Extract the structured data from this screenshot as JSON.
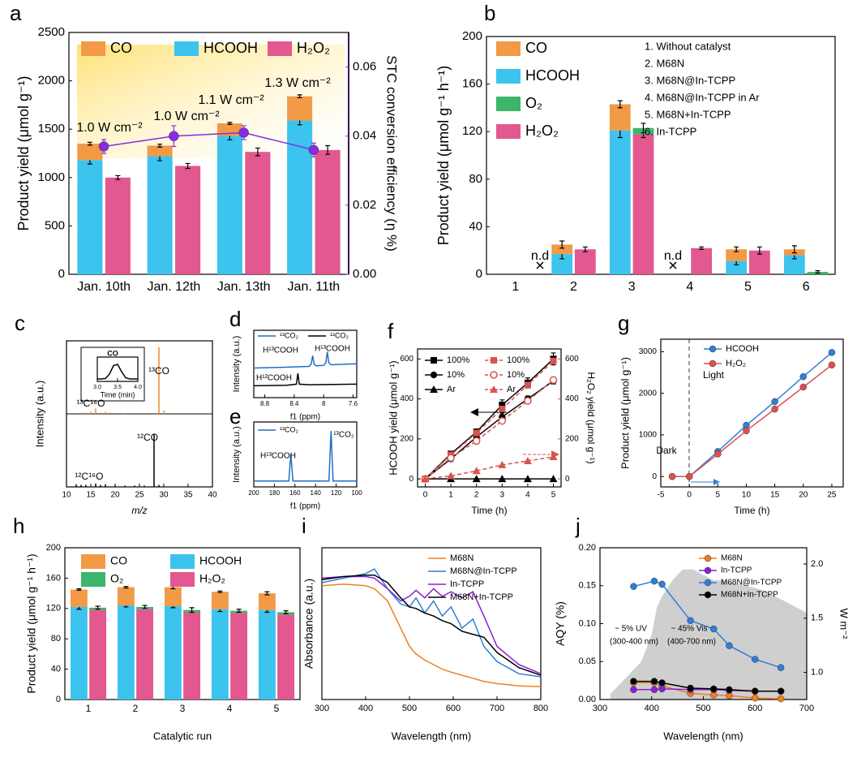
{
  "chart_data": [
    {
      "label": "a",
      "type": "bar",
      "categories": [
        "Jan. 10th",
        "Jan. 12th",
        "Jan. 13th",
        "Jan. 11th"
      ],
      "series": [
        {
          "name": "CO",
          "color": "#f29a46",
          "values": [
            170,
            110,
            130,
            250
          ],
          "errors": [
            15,
            15,
            10,
            15
          ]
        },
        {
          "name": "HCOOH",
          "color": "#3cc4ef",
          "values": [
            1180,
            1220,
            1430,
            1590
          ],
          "errors": [
            40,
            45,
            40,
            45
          ]
        },
        {
          "name": "H₂O₂",
          "color": "#e2588f",
          "values": [
            1000,
            1120,
            1265,
            1285
          ],
          "errors": [
            20,
            25,
            40,
            45
          ]
        },
        {
          "kind": "line",
          "axis": "y2",
          "color": "#8a2be2",
          "values": [
            0.037,
            0.04,
            0.041,
            0.036
          ],
          "errors": [
            0.002,
            0.003,
            0.002,
            0.002
          ]
        }
      ],
      "ylim": [
        0,
        2500
      ],
      "yticks": [
        0,
        500,
        1000,
        1500,
        2000,
        2500
      ],
      "y2lim": [
        0,
        0.07
      ],
      "y2ticks": [
        {
          "value": 0,
          "label": "0.00"
        },
        {
          "value": 0.02,
          "label": "0.02"
        },
        {
          "value": 0.04,
          "label": "0.04"
        },
        {
          "value": 0.06,
          "label": "0.06"
        }
      ],
      "ylabel": "Product yield (μmol g⁻¹)",
      "y2label": "STC conversion efficiency (η %)",
      "annotations": [
        "1.0 W cm⁻²",
        "1.0 W cm⁻²",
        "1.1 W cm⁻²",
        "1.3 W cm⁻²"
      ]
    },
    {
      "label": "b",
      "type": "bar",
      "categories": [
        "1",
        "2",
        "3",
        "4",
        "5",
        "6"
      ],
      "series": [
        {
          "name": "CO",
          "color": "#f29a46",
          "values": [
            null,
            8,
            22,
            null,
            10,
            5
          ],
          "errors": [
            null,
            3,
            3,
            null,
            2,
            3
          ]
        },
        {
          "name": "HCOOH",
          "color": "#3cc4ef",
          "values": [
            null,
            17,
            121,
            null,
            11,
            16
          ],
          "errors": [
            null,
            4,
            6,
            null,
            3,
            3
          ]
        },
        {
          "name": "O₂",
          "color": "#3db56b",
          "values": [
            null,
            null,
            5,
            null,
            null,
            2
          ],
          "errors": [
            null,
            null,
            4,
            null,
            null,
            1
          ]
        },
        {
          "name": "H₂O₂",
          "color": "#e2588f",
          "values": [
            null,
            21,
            118,
            22,
            20,
            null
          ],
          "errors": [
            null,
            2,
            3,
            1,
            3,
            null
          ]
        }
      ],
      "ylim": [
        0,
        200
      ],
      "yticks": [
        0,
        40,
        80,
        120,
        160,
        200
      ],
      "ylabel": "Product yield (μmol g⁻¹ h⁻¹)",
      "notes": [
        "1. Without catalyst",
        "2. M68N",
        "3. M68N@In-TCPP",
        "4. M68N@In-TCPP in Ar",
        "5. M68N+In-TCPP",
        "6. In-TCPP"
      ],
      "annotations": [
        "n.d",
        "n.d"
      ]
    },
    {
      "label": "c",
      "type": "stick",
      "xlim": [
        10,
        40
      ],
      "xticks": [
        10,
        15,
        20,
        25,
        30,
        35,
        40
      ],
      "ylim": [
        0,
        1
      ],
      "xlabel": "m/z",
      "ylabel": "Intensity (a.u.)",
      "series": [
        {
          "color": "#f08a24",
          "x": [
            13,
            14,
            15,
            16,
            17,
            18,
            19,
            22,
            29,
            30
          ],
          "values": [
            0.02,
            0.02,
            0.03,
            0.08,
            0.02,
            0.03,
            0.02,
            0.01,
            1,
            0.05
          ]
        },
        {
          "color": "#000000",
          "x": [
            12,
            13,
            14,
            16,
            17,
            18,
            20,
            22,
            24,
            26,
            28,
            29
          ],
          "values": [
            0.04,
            0.03,
            0.03,
            0.05,
            0.03,
            0.04,
            0.02,
            0.02,
            0.02,
            0.02,
            0.8,
            0.03
          ]
        }
      ],
      "annotations": [
        "¹³CO",
        "¹³C¹⁶O",
        "¹²CO",
        "¹²C¹⁶O"
      ]
    },
    {
      "type": "line",
      "title": "CO",
      "xlim": [
        3,
        4
      ],
      "xticks": [
        {
          "value": 3,
          "label": "3.0"
        },
        {
          "value": 3.5,
          "label": "3.5"
        },
        {
          "value": 4,
          "label": "4.0"
        }
      ],
      "xlabel": "Time (min)",
      "ylim": [
        0,
        1
      ],
      "x": [
        3.0,
        3.1,
        3.2,
        3.3,
        3.4,
        3.5,
        3.6,
        3.7,
        3.8,
        3.9,
        4.0
      ],
      "series": [
        {
          "color": "#000000",
          "values": [
            0.1,
            0.1,
            0.12,
            0.3,
            0.65,
            0.7,
            0.4,
            0.15,
            0.1,
            0.1,
            0.1
          ]
        }
      ]
    },
    {
      "label": "d",
      "type": "line",
      "xlim": [
        8.95,
        7.55
      ],
      "xticks": [
        8.8,
        8.4,
        8.0,
        7.6
      ],
      "ylim": [
        0,
        1.25
      ],
      "xlabel": "f1 (ppm)",
      "ylabel": "Intensity (a.u.)",
      "series": [
        {
          "name": "¹³CO₂",
          "color": "#1f6fc5",
          "x": [
            8.95,
            8.6,
            8.2,
            8.17,
            8.15,
            8.13,
            8.1,
            8.0,
            7.97,
            7.95,
            7.93,
            7.9,
            7.55
          ],
          "values": [
            0.55,
            0.56,
            0.58,
            0.62,
            0.78,
            0.62,
            0.59,
            0.6,
            0.65,
            0.85,
            0.65,
            0.61,
            0.63
          ]
        },
        {
          "name": "¹²CO₂",
          "color": "#000000",
          "x": [
            8.95,
            8.5,
            8.37,
            8.35,
            8.33,
            8.2,
            7.55
          ],
          "values": [
            0.22,
            0.23,
            0.25,
            0.45,
            0.25,
            0.24,
            0.25
          ]
        }
      ],
      "annotations": [
        "H¹³COOH",
        "H¹³COOH",
        "H¹²COOH"
      ]
    },
    {
      "label": "e",
      "type": "line",
      "xlim": [
        200,
        100
      ],
      "xticks": [
        200,
        180,
        160,
        140,
        120,
        100
      ],
      "ylim": [
        0,
        1.1
      ],
      "xlabel": "f1 (ppm)",
      "ylabel": "Intensity (a.u.)",
      "series": [
        {
          "name": "¹³CO₂",
          "color": "#1f6fc5",
          "x": [
            200,
            180,
            166,
            164,
            162,
            140,
            127,
            125,
            123,
            110,
            100
          ],
          "values": [
            0.1,
            0.1,
            0.1,
            0.55,
            0.1,
            0.1,
            0.1,
            0.95,
            0.1,
            0.1,
            0.1
          ]
        }
      ],
      "annotations": [
        "H¹³COOH",
        "¹³CO₂"
      ]
    },
    {
      "label": "f",
      "type": "line",
      "x": [
        0,
        1,
        2,
        3,
        4,
        5
      ],
      "xlim": [
        -0.3,
        5.3
      ],
      "xticks": [
        0,
        1,
        2,
        3,
        4,
        5
      ],
      "ylim": [
        -40,
        650
      ],
      "yticks": [
        0,
        200,
        400,
        600
      ],
      "y2lim": [
        -40,
        650
      ],
      "y2ticks": [
        0,
        200,
        400,
        600
      ],
      "xlabel": "Time (h)",
      "ylabel": "HCOOH yield (μmol g⁻¹)",
      "y2label": "H₂O₂ yield (μmol g⁻¹)",
      "series": [
        {
          "name": "100%",
          "color": "#000000",
          "marker": "square",
          "values": [
            0,
            125,
            235,
            370,
            480,
            600
          ],
          "errors": [
            0,
            12,
            15,
            25,
            25,
            30
          ]
        },
        {
          "name": "10%",
          "color": "#000000",
          "marker": "circle",
          "values": [
            0,
            100,
            210,
            310,
            400,
            490
          ],
          "errors": [
            0,
            10,
            15,
            20,
            15,
            15
          ]
        },
        {
          "name": "Ar",
          "color": "#000000",
          "marker": "triangle",
          "values": [
            0,
            0,
            0,
            0,
            0,
            0
          ]
        },
        {
          "name": "100%",
          "color": "#d9534f",
          "marker": "square",
          "dash": true,
          "axis": "y2",
          "values": [
            0,
            120,
            230,
            350,
            470,
            590
          ]
        },
        {
          "name": "10%",
          "color": "#d9534f",
          "marker": "open-circle",
          "dash": true,
          "axis": "y2",
          "values": [
            0,
            105,
            190,
            290,
            390,
            495
          ]
        },
        {
          "name": "Ar",
          "color": "#d9534f",
          "marker": "triangle",
          "dash": true,
          "axis": "y2",
          "values": [
            0,
            15,
            40,
            70,
            90,
            110
          ]
        }
      ]
    },
    {
      "label": "g",
      "type": "line",
      "x": [
        -3,
        0,
        5,
        10,
        15,
        20,
        25
      ],
      "xlim": [
        -5,
        27
      ],
      "xticks": [
        -5,
        0,
        5,
        10,
        15,
        20,
        25
      ],
      "ylim": [
        -250,
        3300
      ],
      "yticks": [
        0,
        1000,
        2000,
        3000
      ],
      "xlabel": "Time (h)",
      "ylabel": "Product yield (μmol g⁻¹)",
      "series": [
        {
          "name": "HCOOH",
          "color": "#2f7fd6",
          "marker": "circle",
          "values": [
            0,
            0,
            600,
            1230,
            1800,
            2400,
            2980
          ]
        },
        {
          "name": "H₂O₂",
          "color": "#e05050",
          "marker": "circle",
          "values": [
            0,
            0,
            540,
            1100,
            1620,
            2150,
            2680
          ]
        }
      ],
      "annotations": [
        "Light",
        "Dark"
      ]
    },
    {
      "label": "h",
      "type": "bar",
      "categories": [
        "1",
        "2",
        "3",
        "4",
        "5"
      ],
      "series": [
        {
          "name": "CO",
          "color": "#f29a46",
          "values": [
            23,
            24,
            25,
            23,
            22
          ],
          "errors": [
            1,
            1,
            2,
            1,
            2
          ]
        },
        {
          "name": "HCOOH",
          "color": "#3cc4ef",
          "values": [
            122,
            124,
            123,
            119,
            118
          ],
          "errors": [
            3,
            2,
            2,
            3,
            3
          ]
        },
        {
          "name": "O₂",
          "color": "#3db56b",
          "values": [
            3,
            3,
            3,
            3,
            3
          ],
          "errors": [
            2,
            2,
            3,
            2,
            2
          ]
        },
        {
          "name": "H₂O₂",
          "color": "#e2588f",
          "values": [
            118,
            119,
            115,
            114,
            112
          ]
        }
      ],
      "ylim": [
        0,
        200
      ],
      "yticks": [
        0,
        40,
        80,
        120,
        160,
        200
      ],
      "xlabel": "Catalytic run",
      "ylabel": "Product yield (μmol g⁻¹ h⁻¹)"
    },
    {
      "label": "i",
      "type": "line",
      "x": [
        300,
        350,
        400,
        420,
        450,
        480,
        500,
        515,
        535,
        555,
        575,
        595,
        620,
        645,
        670,
        700,
        750,
        800
      ],
      "xlim": [
        300,
        800
      ],
      "xticks": [
        300,
        400,
        500,
        600,
        700,
        800
      ],
      "ylim": [
        0.05,
        1.05
      ],
      "xlabel": "Wavelength (nm)",
      "ylabel": "Absorbance (a.u.)",
      "series": [
        {
          "name": "M68N",
          "color": "#f07f1e",
          "values": [
            0.8,
            0.81,
            0.8,
            0.78,
            0.7,
            0.52,
            0.4,
            0.35,
            0.31,
            0.28,
            0.25,
            0.23,
            0.21,
            0.19,
            0.17,
            0.155,
            0.14,
            0.135
          ]
        },
        {
          "name": "M68N@In-TCPP",
          "color": "#2f7fd6",
          "values": [
            0.82,
            0.85,
            0.88,
            0.91,
            0.78,
            0.68,
            0.66,
            0.72,
            0.62,
            0.7,
            0.6,
            0.66,
            0.52,
            0.58,
            0.4,
            0.3,
            0.22,
            0.2
          ]
        },
        {
          "name": "In-TCPP",
          "color": "#8b1fd6",
          "values": [
            0.85,
            0.86,
            0.86,
            0.85,
            0.78,
            0.7,
            0.73,
            0.77,
            0.72,
            0.78,
            0.73,
            0.76,
            0.72,
            0.76,
            0.6,
            0.4,
            0.28,
            0.22
          ]
        },
        {
          "name": "M68N+In-TCPP",
          "color": "#000000",
          "values": [
            0.84,
            0.86,
            0.87,
            0.87,
            0.82,
            0.72,
            0.66,
            0.65,
            0.62,
            0.6,
            0.57,
            0.55,
            0.5,
            0.48,
            0.46,
            0.36,
            0.26,
            0.21
          ]
        }
      ]
    },
    {
      "label": "j",
      "type": "line",
      "x": [
        365,
        405,
        420,
        475,
        520,
        550,
        600,
        650
      ],
      "xlim": [
        300,
        700
      ],
      "xticks": [
        300,
        400,
        500,
        600,
        700
      ],
      "ylim": [
        0,
        0.2
      ],
      "yticks": [
        {
          "value": 0,
          "label": "0.00"
        },
        {
          "value": 0.05,
          "label": "0.05"
        },
        {
          "value": 0.1,
          "label": "0.10"
        },
        {
          "value": 0.15,
          "label": "0.15"
        },
        {
          "value": 0.2,
          "label": "0.20"
        }
      ],
      "y2lim": [
        0.75,
        2.15
      ],
      "y2ticks": [
        {
          "value": 1,
          "label": "1.0"
        },
        {
          "value": 1.5,
          "label": "1.5"
        },
        {
          "value": 2,
          "label": "2.0"
        }
      ],
      "xlabel": "Wavelength (nm)",
      "ylabel": "AQY (%)",
      "y2label": "W m⁻²",
      "series": [
        {
          "kind": "area",
          "axis": "y2",
          "color": "#cfcfcf",
          "x": [
            320,
            340,
            360,
            380,
            400,
            410,
            420,
            440,
            460,
            480,
            500,
            520,
            540,
            560,
            580,
            600,
            620,
            640,
            660,
            680,
            700
          ],
          "values": [
            0.8,
            0.9,
            1.0,
            1.1,
            1.35,
            1.6,
            1.7,
            1.85,
            1.95,
            1.95,
            1.9,
            1.85,
            1.85,
            1.82,
            1.8,
            1.78,
            1.75,
            1.7,
            1.65,
            1.6,
            1.55
          ]
        },
        {
          "name": "M68N",
          "color": "#f07f1e",
          "marker": "circle",
          "values": [
            0.022,
            0.022,
            0.018,
            0.008,
            0.006,
            0.005,
            0.002,
            0.001
          ]
        },
        {
          "name": "In-TCPP",
          "color": "#8b1fd6",
          "marker": "circle",
          "values": [
            0.013,
            0.013,
            0.014,
            0.013,
            0.013,
            0.012,
            0.011,
            0.011
          ]
        },
        {
          "name": "M68N@In-TCPP",
          "color": "#2f7fd6",
          "marker": "circle",
          "values": [
            0.149,
            0.156,
            0.152,
            0.104,
            0.093,
            0.071,
            0.053,
            0.042
          ]
        },
        {
          "name": "M68N+In-TCPP",
          "color": "#000000",
          "marker": "circle",
          "values": [
            0.024,
            0.024,
            0.022,
            0.015,
            0.014,
            0.013,
            0.011,
            0.011
          ]
        }
      ],
      "annotations": [
        "~ 5% UV",
        "(300-400 nm)",
        "~ 45% Vis",
        "(400-700 nm)"
      ]
    }
  ]
}
